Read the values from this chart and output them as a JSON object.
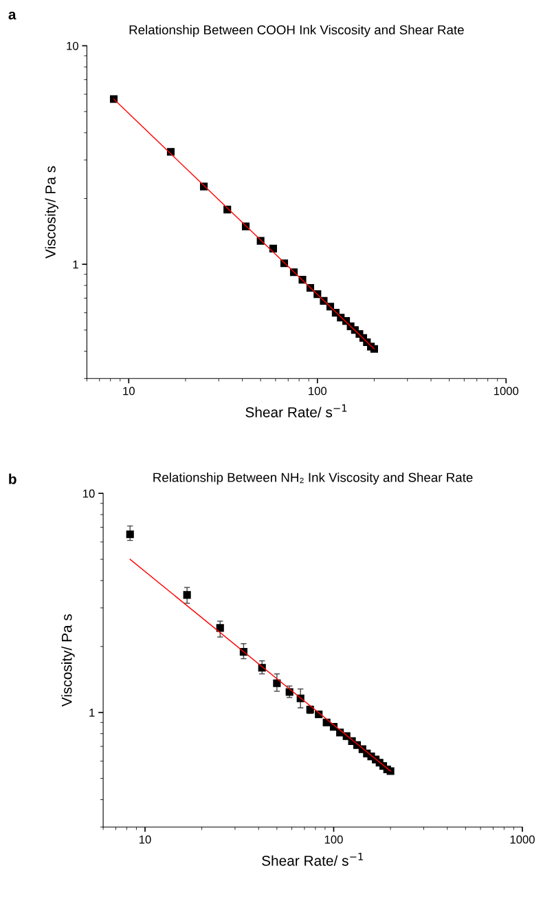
{
  "chart_data": [
    {
      "type": "scatter",
      "title": "Relationship Between COOH Ink Viscosity and Shear Rate",
      "xlabel": "Shear Rate/ s$^{−1}$",
      "ylabel": "Viscosity/ Pa s",
      "annotations": [
        "a"
      ],
      "log": "xy",
      "grid": false,
      "xlim": [
        6,
        1000
      ],
      "ylim": [
        0.3,
        10
      ],
      "xticks": [
        10,
        100,
        1000
      ],
      "yticks": [
        1,
        10
      ],
      "series": [
        {
          "marker": "square",
          "color": "#000000",
          "x": [
            8.33,
            16.7,
            25,
            33.3,
            41.7,
            50,
            58.3,
            66.7,
            75,
            83.3,
            91.7,
            100,
            108,
            117,
            125,
            133,
            142,
            150,
            158,
            167,
            175,
            183,
            192,
            200
          ],
          "values": [
            5.7,
            3.27,
            2.27,
            1.78,
            1.49,
            1.28,
            1.18,
            1.01,
            0.92,
            0.85,
            0.78,
            0.73,
            0.68,
            0.64,
            0.6,
            0.57,
            0.55,
            0.52,
            0.5,
            0.48,
            0.46,
            0.44,
            0.42,
            0.41
          ]
        },
        {
          "type": "line",
          "marker": "none",
          "color": "#ff0000",
          "x": [
            8.33,
            200
          ],
          "values": [
            5.7,
            0.41
          ]
        }
      ]
    },
    {
      "type": "scatter",
      "title": "Relationship Between NH₂ Ink Viscosity and Shear Rate",
      "xlabel": "Shear Rate/ s$^{−1}$",
      "ylabel": "Viscosity/ Pa s",
      "annotations": [
        "b"
      ],
      "log": "xy",
      "grid": false,
      "xlim": [
        6,
        1000
      ],
      "ylim": [
        0.3,
        10
      ],
      "xticks": [
        10,
        100,
        1000
      ],
      "yticks": [
        1,
        10
      ],
      "series": [
        {
          "marker": "square",
          "color": "#000000",
          "x": [
            8.33,
            16.7,
            25,
            33.3,
            41.7,
            50,
            58.3,
            66.7,
            75,
            83.3,
            91.7,
            100,
            108,
            117,
            125,
            133,
            142,
            150,
            158,
            167,
            175,
            183,
            192,
            200
          ],
          "values": [
            6.5,
            3.44,
            2.43,
            1.89,
            1.6,
            1.36,
            1.24,
            1.16,
            1.03,
            0.98,
            0.9,
            0.86,
            0.81,
            0.78,
            0.74,
            0.71,
            0.68,
            0.65,
            0.63,
            0.61,
            0.59,
            0.57,
            0.55,
            0.54
          ],
          "errors": [
            [
              6.1,
              7.1
            ],
            [
              3.15,
              3.72
            ],
            [
              2.21,
              2.61
            ],
            [
              1.76,
              2.06
            ],
            [
              1.5,
              1.72
            ],
            [
              1.25,
              1.5
            ],
            [
              1.17,
              1.32
            ],
            [
              1.05,
              1.28
            ],
            [
              0.99,
              1.07
            ],
            0.03,
            0.02,
            0.02,
            0.02,
            0.02,
            0.02,
            0.02,
            0.02,
            null,
            null,
            null,
            null,
            null,
            null,
            null
          ]
        },
        {
          "type": "line",
          "marker": "none",
          "color": "#ff0000",
          "x": [
            8.33,
            200
          ],
          "values": [
            5.0,
            0.54
          ]
        }
      ]
    }
  ]
}
